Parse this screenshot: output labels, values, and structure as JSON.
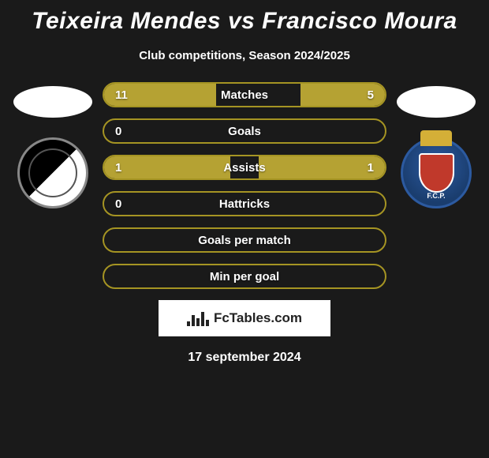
{
  "title": "Teixeira Mendes vs Francisco Moura",
  "subtitle": "Club competitions, Season 2024/2025",
  "footer_date": "17 september 2024",
  "fctables_label": "FcTables.com",
  "accent_color": "#a59423",
  "accent_fill": "#b5a233",
  "background": "#1a1a1a",
  "bars": [
    {
      "label": "Matches",
      "left_val": "11",
      "right_val": "5",
      "left_pct": 40,
      "right_pct": 30,
      "show_left": true,
      "show_right": true
    },
    {
      "label": "Goals",
      "left_val": "0",
      "right_val": "",
      "left_pct": 0,
      "right_pct": 0,
      "show_left": true,
      "show_right": false
    },
    {
      "label": "Assists",
      "left_val": "1",
      "right_val": "1",
      "left_pct": 45,
      "right_pct": 45,
      "show_left": true,
      "show_right": true
    },
    {
      "label": "Hattricks",
      "left_val": "0",
      "right_val": "",
      "left_pct": 0,
      "right_pct": 0,
      "show_left": true,
      "show_right": false
    },
    {
      "label": "Goals per match",
      "left_val": "",
      "right_val": "",
      "left_pct": 0,
      "right_pct": 0,
      "show_left": false,
      "show_right": false
    },
    {
      "label": "Min per goal",
      "left_val": "",
      "right_val": "",
      "left_pct": 0,
      "right_pct": 0,
      "show_left": false,
      "show_right": false
    }
  ],
  "left_team": {
    "name": "Vitória SC"
  },
  "right_team": {
    "name": "FC Porto"
  },
  "fctables_bar_heights": [
    6,
    14,
    10,
    18,
    8
  ]
}
